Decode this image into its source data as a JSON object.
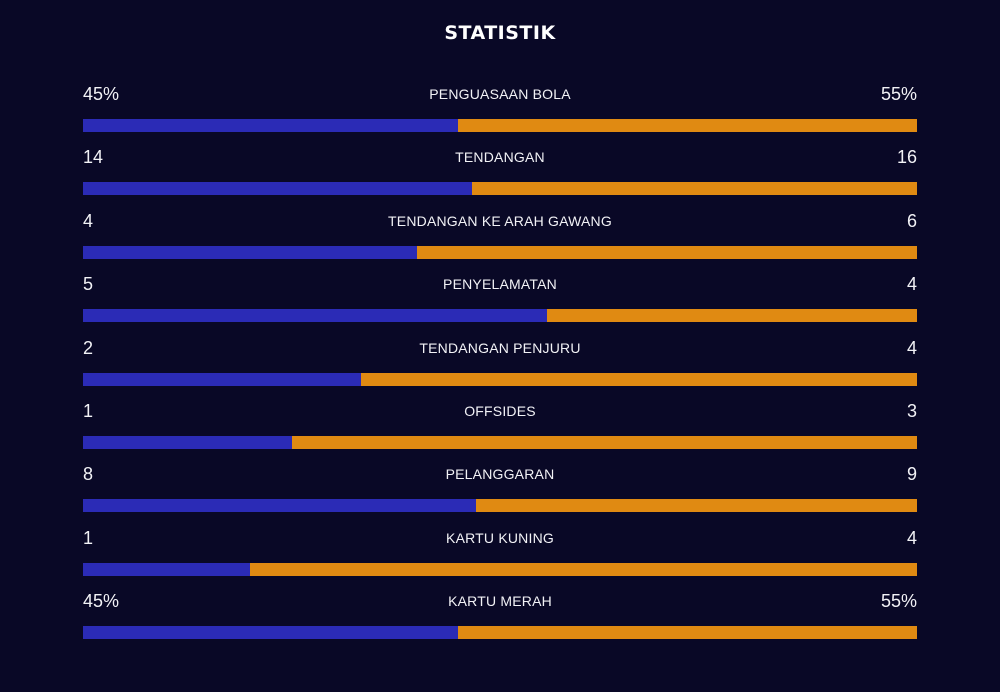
{
  "header": {
    "title": "STATISTIK"
  },
  "colors": {
    "background": "#090826",
    "home": "#2b2bb6",
    "away": "#e08a12"
  },
  "stats": [
    {
      "label": "PENGUASAAN BOLA",
      "home": "45%",
      "away": "55%",
      "home_share": 0.45
    },
    {
      "label": "TENDANGAN",
      "home": "14",
      "away": "16",
      "home_share": 0.467
    },
    {
      "label": "TENDANGAN KE ARAH GAWANG",
      "home": "4",
      "away": "6",
      "home_share": 0.4
    },
    {
      "label": "PENYELAMATAN",
      "home": "5",
      "away": "4",
      "home_share": 0.556
    },
    {
      "label": "TENDANGAN PENJURU",
      "home": "2",
      "away": "4",
      "home_share": 0.333
    },
    {
      "label": "OFFSIDES",
      "home": "1",
      "away": "3",
      "home_share": 0.25
    },
    {
      "label": "PELANGGARAN",
      "home": "8",
      "away": "9",
      "home_share": 0.471
    },
    {
      "label": "KARTU KUNING",
      "home": "1",
      "away": "4",
      "home_share": 0.2
    },
    {
      "label": "KARTU MERAH",
      "home": "45%",
      "away": "55%",
      "home_share": 0.45
    }
  ]
}
